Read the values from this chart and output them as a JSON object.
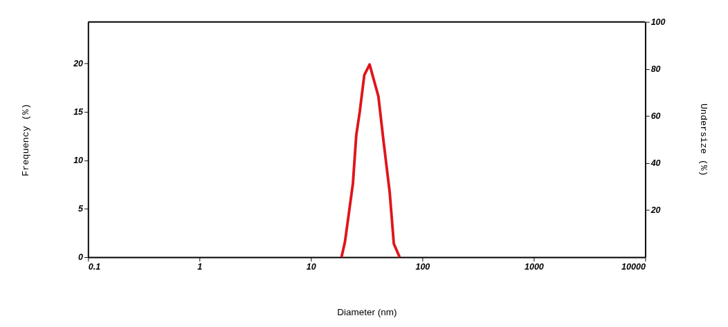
{
  "chart_data": {
    "type": "line",
    "xlabel": "Diameter (nm)",
    "ylabel": "Frequency (%)",
    "y2label": "Undersize (%)",
    "log": "x",
    "x": [
      18.8,
      20.2,
      23.8,
      25.5,
      27.4,
      30.1,
      33.6,
      40.3,
      45.0,
      50.9,
      55.4,
      62.5
    ],
    "series": [
      {
        "color": "#e0151b",
        "values": [
          0,
          1.6,
          7.6,
          12.6,
          15.0,
          18.8,
          19.9,
          16.6,
          11.8,
          6.7,
          1.4,
          0
        ]
      }
    ],
    "xlim": [
      0.1,
      10000
    ],
    "xticks": [
      0.1,
      1,
      10,
      100,
      1000,
      10000
    ],
    "ylim": [
      0,
      24.3
    ],
    "yticks": [
      0,
      5,
      10,
      15,
      20
    ],
    "y2lim": [
      0,
      100
    ],
    "y2ticks": [
      20,
      40,
      60,
      80,
      100
    ],
    "grid": false,
    "marker": "none",
    "line_style": "solid"
  }
}
